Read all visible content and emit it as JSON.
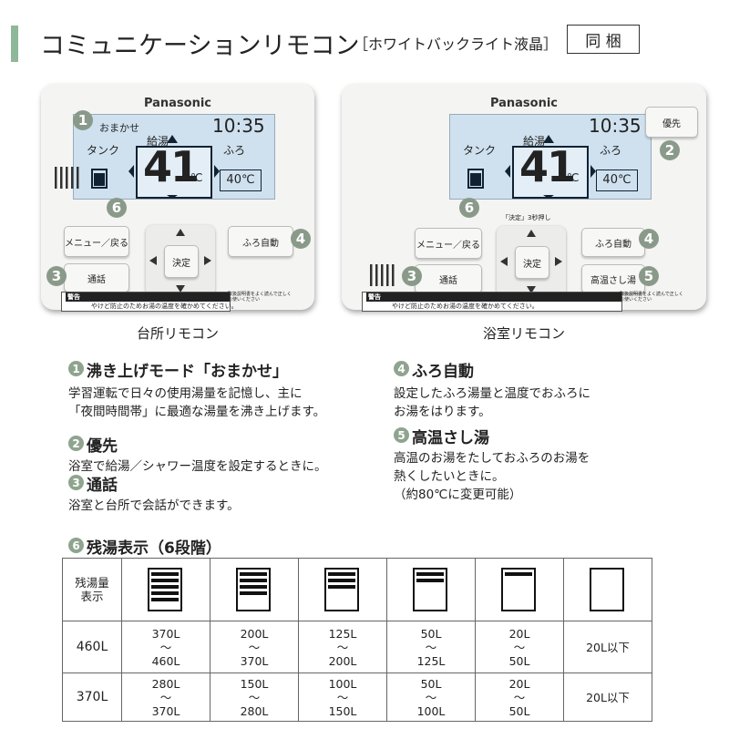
{
  "header": {
    "title": "コミュニケーションリモコン",
    "subtitle": "［ホワイトバックライト液晶］",
    "badge": "同 梱"
  },
  "remotes": [
    {
      "caption": "台所リモコン",
      "brand": "Panasonic",
      "mode": "おまかせ",
      "time": "10:35",
      "tank": "タンク",
      "hot_water": "給湯",
      "bath": "ふろ",
      "temp": "41",
      "temp_unit": "℃",
      "bath_temp": "40℃",
      "buttons": [
        "メニュー／戻る",
        "通話",
        "決定",
        "ふろ自動"
      ],
      "warning": "警告",
      "warning_text": "やけど防止のためお湯の温度を確かめてください。",
      "warning_note": "取扱説明書をよく読んで正しくお使いください",
      "markers": [
        "1",
        "6",
        "3",
        "4"
      ]
    },
    {
      "caption": "浴室リモコン",
      "brand": "Panasonic",
      "time": "10:35",
      "tank": "タンク",
      "hot_water": "給湯",
      "bath": "ふろ",
      "temp": "41",
      "temp_unit": "℃",
      "bath_temp": "40℃",
      "buttons": [
        "メニュー／戻る",
        "通話",
        "決定",
        "ふろ自動",
        "高温さし湯",
        "優先"
      ],
      "hint": "「決定」3秒押し",
      "warning": "警告",
      "warning_text": "やけど防止のためお湯の温度を確かめてください。",
      "warning_note": "取扱説明書をよく読んで正しくお使いください",
      "markers": [
        "2",
        "6",
        "3",
        "4",
        "5"
      ]
    }
  ],
  "features": [
    {
      "num": "1",
      "title": "沸き上げモード「おまかせ」",
      "lines": [
        "学習運転で日々の使用湯量を記憶し、主に",
        "「夜間時間帯」に最適な湯量を沸き上げます。"
      ]
    },
    {
      "num": "2",
      "title": "優先",
      "lines": [
        "浴室で給湯／シャワー温度を設定するときに。"
      ]
    },
    {
      "num": "3",
      "title": "通話",
      "lines": [
        "浴室と台所で会話ができます。"
      ]
    },
    {
      "num": "4",
      "title": "ふろ自動",
      "lines": [
        "設定したふろ湯量と温度でおふろに",
        "お湯をはります。"
      ]
    },
    {
      "num": "5",
      "title": "高温さし湯",
      "lines": [
        "高温のお湯をたしておふろのお湯を",
        "熱くしたいときに。",
        "（約80℃に変更可能）"
      ]
    }
  ],
  "level_table": {
    "num": "6",
    "title": "残湯表示（6段階）",
    "header": "残湯量\n表示",
    "rows": [
      {
        "label": "460L",
        "cells": [
          "370L\n～\n460L",
          "200L\n～\n370L",
          "125L\n～\n200L",
          "50L\n～\n125L",
          "20L\n～\n50L",
          "20L以下"
        ]
      },
      {
        "label": "370L",
        "cells": [
          "280L\n～\n370L",
          "150L\n～\n280L",
          "100L\n～\n150L",
          "50L\n～\n100L",
          "20L\n～\n50L",
          "20L以下"
        ]
      }
    ]
  }
}
